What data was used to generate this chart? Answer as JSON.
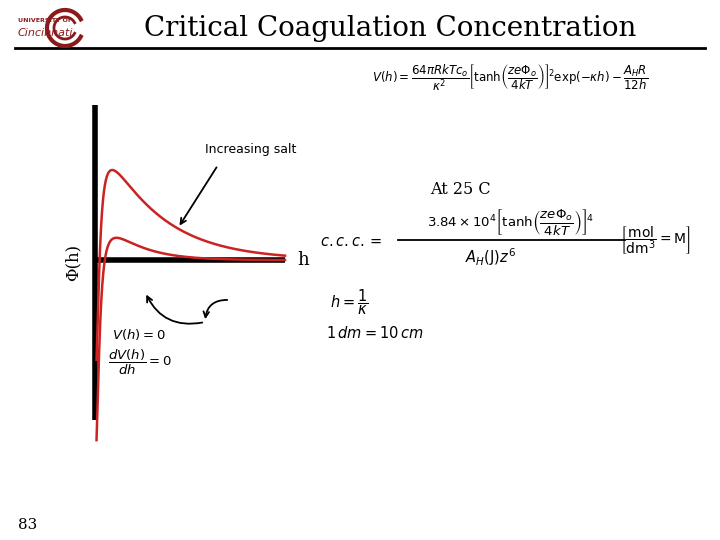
{
  "title": "Critical Coagulation Concentration",
  "page_number": "83",
  "background_color": "#ffffff",
  "title_fontsize": 20,
  "title_color": "#000000",
  "curve_color": "#cc2222",
  "axis_color": "#000000",
  "ylabel_text": "Φ(h)",
  "xlabel_text": "h",
  "increasing_salt_label": "Increasing salt",
  "at25c_label": "At 25 C",
  "logo_color": "#8b1a1a"
}
